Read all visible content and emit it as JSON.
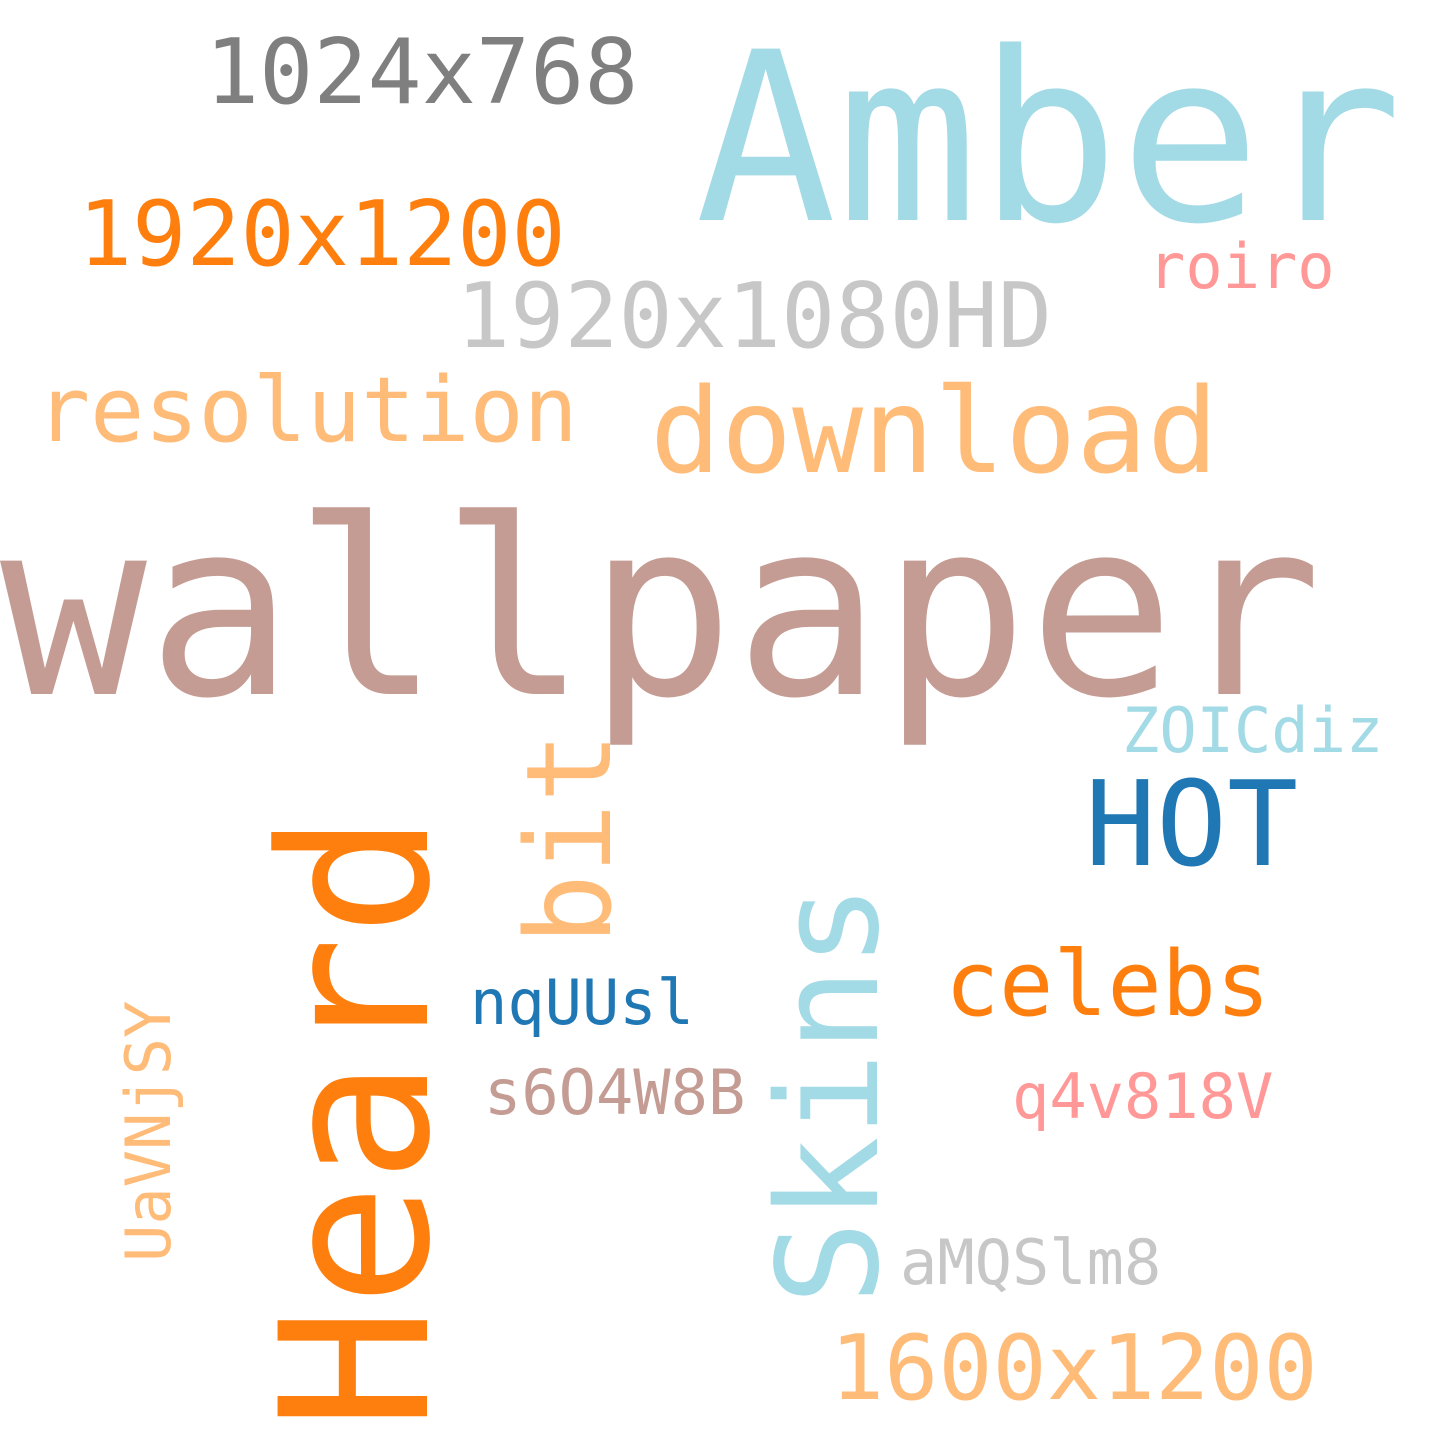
{
  "wordcloud": {
    "words": [
      {
        "text": "1024x768",
        "color": "#7f7f7f"
      },
      {
        "text": "Amber",
        "color": "#a2dae6"
      },
      {
        "text": "1920x1200",
        "color": "#ff7f0e"
      },
      {
        "text": "roiro",
        "color": "#ff9896"
      },
      {
        "text": "1920x1080HD",
        "color": "#c7c7c7"
      },
      {
        "text": "resolution",
        "color": "#ffbb78"
      },
      {
        "text": "download",
        "color": "#ffbb78"
      },
      {
        "text": "wallpaper",
        "color": "#c49c94"
      },
      {
        "text": "ZOICdiz",
        "color": "#a2dae6"
      },
      {
        "text": "HOT",
        "color": "#1f77b4"
      },
      {
        "text": "celebs",
        "color": "#ff7f0e"
      },
      {
        "text": "nqUUsl",
        "color": "#1f77b4"
      },
      {
        "text": "s6O4W8B",
        "color": "#c49c94"
      },
      {
        "text": "q4v818V",
        "color": "#ff9896"
      },
      {
        "text": "aMQSlm8",
        "color": "#c7c7c7"
      },
      {
        "text": "1600x1200",
        "color": "#ffbb78"
      },
      {
        "text": "Heard",
        "color": "#ff7f0e"
      },
      {
        "text": "Skins",
        "color": "#a2dae6"
      },
      {
        "text": "bit",
        "color": "#ffbb78"
      },
      {
        "text": "UaVNjSY",
        "color": "#ffbb78"
      }
    ]
  }
}
